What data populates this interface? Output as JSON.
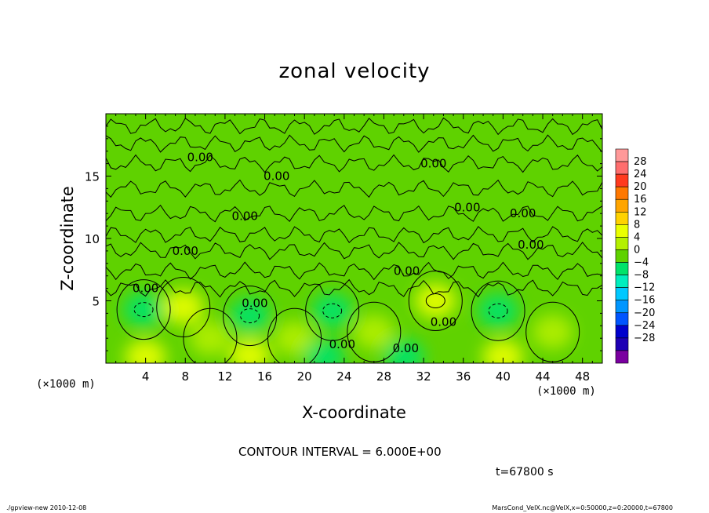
{
  "chart_data": {
    "type": "heatmap",
    "title": "zonal velocity",
    "xlabel": "X-coordinate",
    "ylabel": "Z-coordinate",
    "x_unit_label": "(×1000 m)",
    "xlim": [
      0,
      50
    ],
    "ylim": [
      0,
      20
    ],
    "x_ticks": [
      4,
      8,
      12,
      16,
      20,
      24,
      28,
      32,
      36,
      40,
      44,
      48
    ],
    "y_ticks": [
      5,
      10,
      15
    ],
    "contour_interval_text": "CONTOUR INTERVAL = 6.000E+00",
    "contour_label": "0.00",
    "contour_labels": [
      {
        "x": 9.5,
        "z": 16.5,
        "text": "0.00"
      },
      {
        "x": 17.2,
        "z": 15.0,
        "text": "0.00"
      },
      {
        "x": 33.0,
        "z": 16.0,
        "text": "0.00"
      },
      {
        "x": 36.4,
        "z": 12.5,
        "text": "0.00"
      },
      {
        "x": 42.0,
        "z": 12.0,
        "text": "0.00"
      },
      {
        "x": 14.0,
        "z": 11.8,
        "text": "0.00"
      },
      {
        "x": 42.8,
        "z": 9.5,
        "text": "0.00"
      },
      {
        "x": 8.0,
        "z": 9.0,
        "text": "0.00"
      },
      {
        "x": 30.3,
        "z": 7.4,
        "text": "0.00"
      },
      {
        "x": 4.0,
        "z": 6.0,
        "text": "0.00"
      },
      {
        "x": 15.0,
        "z": 4.8,
        "text": "0.00"
      },
      {
        "x": 34.0,
        "z": 3.3,
        "text": "0.00"
      },
      {
        "x": 23.8,
        "z": 1.5,
        "text": "0.00"
      },
      {
        "x": 30.2,
        "z": 1.2,
        "text": "0.00"
      }
    ],
    "fill_anomalies": [
      {
        "x": 3.8,
        "z": 4.3,
        "value": -7
      },
      {
        "x": 14.5,
        "z": 3.8,
        "value": -6
      },
      {
        "x": 22.8,
        "z": 4.2,
        "value": -6
      },
      {
        "x": 39.5,
        "z": 4.2,
        "value": -7
      },
      {
        "x": 33.2,
        "z": 5.0,
        "value": 6
      },
      {
        "x": 7.8,
        "z": 4.5,
        "value": 5
      },
      {
        "x": 10.5,
        "z": 2.0,
        "value": 4
      },
      {
        "x": 19.0,
        "z": 2.0,
        "value": 4
      },
      {
        "x": 27.0,
        "z": 2.5,
        "value": 4
      },
      {
        "x": 45.0,
        "z": 2.5,
        "value": 4
      },
      {
        "x": 4.0,
        "z": 0.5,
        "value": 7
      },
      {
        "x": 14.5,
        "z": 0.6,
        "value": 6
      },
      {
        "x": 40.0,
        "z": 0.5,
        "value": 7
      },
      {
        "x": 22.0,
        "z": 0.5,
        "value": -4
      },
      {
        "x": 30.0,
        "z": 0.5,
        "value": -4
      }
    ],
    "colorbar": {
      "levels": [
        "28",
        "24",
        "20",
        "16",
        "12",
        "8",
        "4",
        "0",
        "−4",
        "−8",
        "−12",
        "−16",
        "−20",
        "−24",
        "−28"
      ],
      "colors": [
        "#ff9999",
        "#ff6e6e",
        "#ff3a1e",
        "#ff7800",
        "#ffa500",
        "#ffd200",
        "#eaff00",
        "#b4f000",
        "#5fd200",
        "#00e36a",
        "#00eebe",
        "#00c8ff",
        "#0096ff",
        "#0055ff",
        "#0000cd",
        "#1e00b4",
        "#7a00a0"
      ]
    }
  },
  "labels": {
    "title": "zonal velocity",
    "xlabel": "X-coordinate",
    "ylabel": "Z-coordinate",
    "xunit_left": "(×1000 m)",
    "xunit_right": "(×1000 m)",
    "contour_interval": "CONTOUR INTERVAL = 6.000E+00",
    "time": "t=67800 s",
    "footer_left": "./gpview-new  2010-12-08",
    "footer_right": "MarsCond_VelX.nc@VelX,x=0:50000,z=0:20000,t=67800"
  }
}
